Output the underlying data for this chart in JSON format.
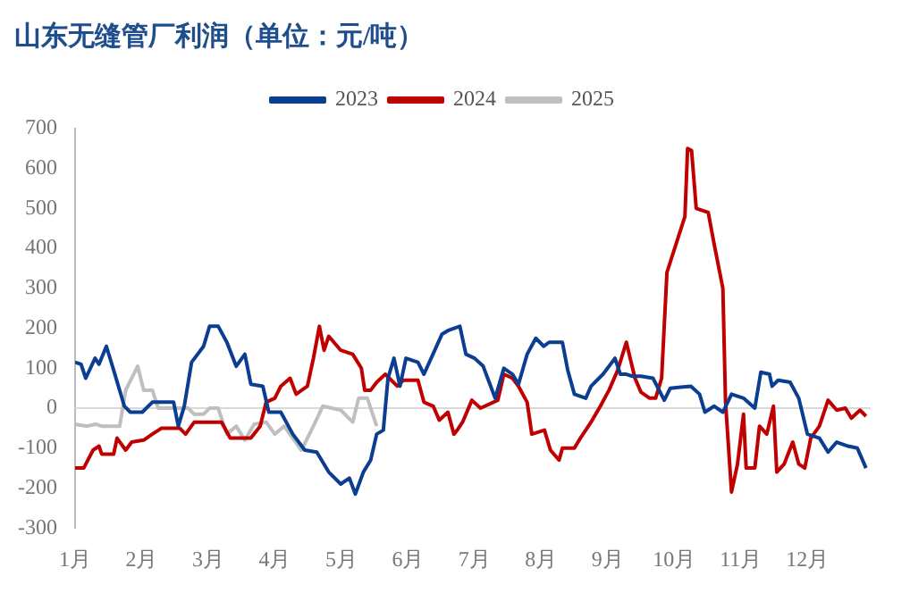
{
  "chart_data": {
    "type": "line",
    "title": "山东无缝管厂利润（单位：元/吨）",
    "xlim": [
      1,
      12.95
    ],
    "xticks": [
      {
        "value": 1,
        "label": "1月"
      },
      {
        "value": 2,
        "label": "2月"
      },
      {
        "value": 3,
        "label": "3月"
      },
      {
        "value": 4,
        "label": "4月"
      },
      {
        "value": 5,
        "label": "5月"
      },
      {
        "value": 6,
        "label": "6月"
      },
      {
        "value": 7,
        "label": "7月"
      },
      {
        "value": 8,
        "label": "8月"
      },
      {
        "value": 9,
        "label": "9月"
      },
      {
        "value": 10,
        "label": "10月"
      },
      {
        "value": 11,
        "label": "11月"
      },
      {
        "value": 12,
        "label": "12月"
      }
    ],
    "ylim": [
      -300,
      700
    ],
    "yticks": [
      -300,
      -200,
      -100,
      0,
      100,
      200,
      300,
      400,
      500,
      600,
      700
    ],
    "grid": false,
    "legend": "top",
    "marker": "none",
    "line_style": "solid",
    "ref_lines": [
      {
        "axis": "y",
        "value": 0,
        "color": "#d9d9d9"
      }
    ],
    "series": [
      {
        "name": "2023",
        "color": "#0b3d91",
        "x": [
          1.0,
          1.09,
          1.16,
          1.3,
          1.36,
          1.47,
          1.58,
          1.74,
          1.83,
          2.01,
          2.16,
          2.48,
          2.55,
          2.64,
          2.75,
          2.93,
          3.02,
          3.15,
          3.28,
          3.42,
          3.55,
          3.64,
          3.82,
          3.91,
          4.09,
          4.27,
          4.45,
          4.63,
          4.81,
          4.99,
          5.12,
          5.21,
          5.33,
          5.44,
          5.53,
          5.63,
          5.7,
          5.79,
          5.88,
          5.97,
          6.15,
          6.24,
          6.51,
          6.61,
          6.78,
          6.87,
          7.0,
          7.13,
          7.22,
          7.31,
          7.44,
          7.57,
          7.66,
          7.79,
          7.92,
          8.04,
          8.12,
          8.32,
          8.4,
          8.5,
          8.67,
          8.75,
          8.93,
          9.11,
          9.19,
          9.28,
          9.37,
          9.5,
          9.68,
          9.85,
          9.94,
          10.25,
          10.38,
          10.46,
          10.6,
          10.73,
          10.86,
          11.04,
          11.21,
          11.3,
          11.43,
          11.47,
          11.56,
          11.74,
          11.87,
          12.0,
          12.18,
          12.31,
          12.44,
          12.61,
          12.75,
          12.88
        ],
        "values": [
          115,
          110,
          75,
          125,
          110,
          155,
          95,
          5,
          -10,
          -10,
          15,
          15,
          -45,
          5,
          115,
          155,
          205,
          205,
          165,
          105,
          135,
          60,
          55,
          -10,
          -10,
          -65,
          -105,
          -110,
          -160,
          -190,
          -175,
          -215,
          -160,
          -130,
          -65,
          -55,
          75,
          125,
          55,
          125,
          115,
          85,
          185,
          195,
          205,
          135,
          125,
          105,
          65,
          25,
          100,
          85,
          60,
          135,
          175,
          155,
          165,
          165,
          95,
          35,
          25,
          55,
          85,
          125,
          85,
          85,
          80,
          80,
          75,
          20,
          50,
          55,
          35,
          -10,
          5,
          -10,
          35,
          25,
          0,
          90,
          85,
          55,
          70,
          65,
          25,
          -65,
          -75,
          -110,
          -85,
          -95,
          -100,
          -150
        ]
      },
      {
        "name": "2024",
        "color": "#c00000",
        "x": [
          1.0,
          1.13,
          1.27,
          1.36,
          1.4,
          1.58,
          1.63,
          1.76,
          1.85,
          2.03,
          2.16,
          2.3,
          2.57,
          2.66,
          2.79,
          3.2,
          3.33,
          3.64,
          3.78,
          3.87,
          4.0,
          4.09,
          4.23,
          4.32,
          4.49,
          4.58,
          4.67,
          4.74,
          4.81,
          4.99,
          5.17,
          5.3,
          5.35,
          5.44,
          5.53,
          5.66,
          5.84,
          5.93,
          6.15,
          6.24,
          6.38,
          6.47,
          6.6,
          6.69,
          6.74,
          6.82,
          6.96,
          7.09,
          7.35,
          7.44,
          7.57,
          7.66,
          7.79,
          7.86,
          8.05,
          8.14,
          8.27,
          8.32,
          8.5,
          8.59,
          8.75,
          8.89,
          9.02,
          9.15,
          9.28,
          9.41,
          9.5,
          9.63,
          9.72,
          9.81,
          9.89,
          10.16,
          10.2,
          10.26,
          10.33,
          10.51,
          10.6,
          10.73,
          10.77,
          10.86,
          10.95,
          11.04,
          11.08,
          11.21,
          11.28,
          11.39,
          11.49,
          11.54,
          11.65,
          11.78,
          11.87,
          11.96,
          12.05,
          12.18,
          12.31,
          12.44,
          12.57,
          12.66,
          12.79,
          12.88
        ],
        "values": [
          -150,
          -150,
          -105,
          -95,
          -115,
          -115,
          -75,
          -105,
          -85,
          -80,
          -65,
          -50,
          -50,
          -65,
          -35,
          -35,
          -75,
          -75,
          -45,
          15,
          25,
          55,
          75,
          35,
          55,
          125,
          205,
          145,
          180,
          145,
          135,
          100,
          45,
          45,
          65,
          85,
          55,
          70,
          70,
          15,
          5,
          -30,
          -10,
          -65,
          -55,
          -35,
          20,
          0,
          20,
          85,
          75,
          55,
          15,
          -65,
          -55,
          -105,
          -130,
          -100,
          -100,
          -75,
          -35,
          5,
          45,
          95,
          165,
          75,
          40,
          25,
          25,
          75,
          340,
          480,
          650,
          645,
          500,
          490,
          410,
          300,
          15,
          -210,
          -140,
          -15,
          -150,
          -150,
          -45,
          -65,
          5,
          -160,
          -140,
          -85,
          -140,
          -150,
          -75,
          -45,
          20,
          -5,
          0,
          -25,
          -5,
          -20
        ]
      },
      {
        "name": "2025",
        "color": "#bfbfbf",
        "x": [
          1.0,
          1.18,
          1.31,
          1.4,
          1.67,
          1.76,
          1.94,
          2.03,
          2.16,
          2.25,
          2.7,
          2.79,
          2.93,
          3.02,
          3.15,
          3.28,
          3.42,
          3.55,
          3.69,
          3.87,
          4.0,
          4.14,
          4.27,
          4.4,
          4.58,
          4.72,
          4.99,
          5.17,
          5.26,
          5.39,
          5.53
        ],
        "values": [
          -40,
          -45,
          -40,
          -45,
          -45,
          45,
          105,
          45,
          45,
          0,
          0,
          -15,
          -15,
          0,
          0,
          -65,
          -45,
          -80,
          -40,
          -35,
          -65,
          -45,
          -75,
          -105,
          -45,
          5,
          -5,
          -35,
          25,
          25,
          -45
        ]
      }
    ]
  }
}
